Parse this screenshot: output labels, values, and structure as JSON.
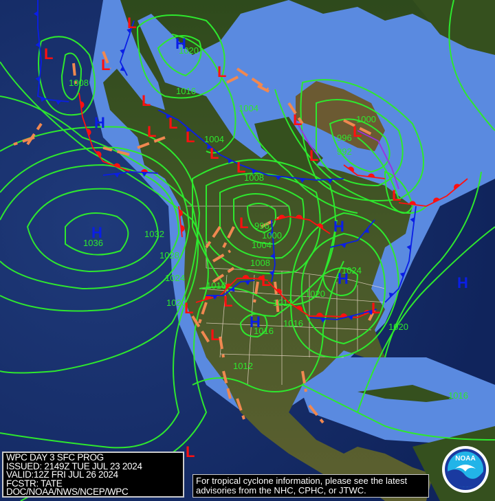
{
  "info_box": {
    "lines": [
      "WPC DAY 3 SFC PROG",
      "ISSUED: 2149Z TUE JUL 23 2024",
      "VALID:12Z FRI JUL 26 2024",
      "FCSTR: TATE",
      "DOC/NOAA/NWS/NCEP/WPC"
    ]
  },
  "tropical_notice": {
    "line1": "For tropical cyclone information, please see the latest",
    "line2": "advisories from the NHC, CPHC, or JTWC."
  },
  "logo": {
    "text": "NOAA"
  },
  "colors": {
    "isobar": "#2ee82e",
    "high": "#0a1ee6",
    "low": "#ff1010",
    "trough": "#f08850",
    "cold_front": "#0a1ee6",
    "warm_front": "#ff1010",
    "occluded_front": "#9a30e0",
    "ocean_deep": "#17306e",
    "ocean_shallow": "#5a8ae0",
    "land": "#35501e"
  },
  "high_centers": [
    "H",
    "H",
    "H",
    "H",
    "H",
    "H",
    "H"
  ],
  "low_centers": [
    "L",
    "L",
    "L",
    "L",
    "L",
    "L",
    "L",
    "L",
    "L",
    "L",
    "L",
    "L",
    "L",
    "L",
    "L",
    "L",
    "L",
    "L",
    "L",
    "L",
    "L"
  ],
  "isobar_labels": [
    "1036",
    "1032",
    "1028",
    "1024",
    "1020",
    "1016",
    "1008",
    "1020",
    "1016",
    "1004",
    "1004",
    "1008",
    "996",
    "1000",
    "1004",
    "1008",
    "1012",
    "1016",
    "1016",
    "1012",
    "1020",
    "1024",
    "1020",
    "1000",
    "996",
    "992",
    "1016"
  ]
}
